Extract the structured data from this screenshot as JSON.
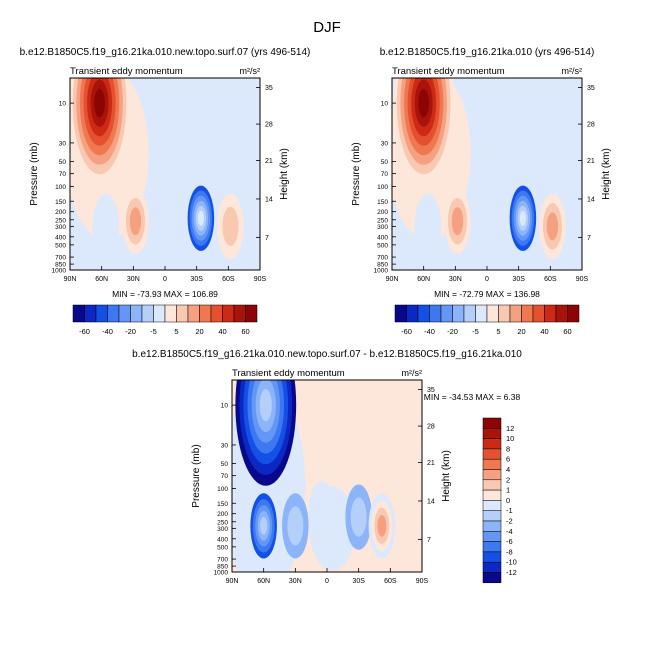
{
  "page_title": "DJF",
  "chart_data": [
    {
      "type": "heatmap",
      "title": "b.e12.B1850C5.f19_g16.21ka.010.new.topo.surf.07 (yrs 496-514)",
      "subtitle": "Transient eddy momentum",
      "units": "m²/s²",
      "ylabel": "Pressure (mb)",
      "ylabel_right": "Height (km)",
      "xticks": [
        "90N",
        "60N",
        "30N",
        "0",
        "30S",
        "60S",
        "90S"
      ],
      "yticks": [
        "10",
        "30",
        "50",
        "70",
        "100",
        "150",
        "200",
        "250",
        "300",
        "400",
        "500",
        "700",
        "850",
        "1000"
      ],
      "height_ticks": [
        "35",
        "28",
        "21",
        "14",
        "7"
      ],
      "stats": "MIN = -73.93   MAX = 106.89",
      "features": [
        {
          "lat": 62,
          "p": 10,
          "value": 95
        },
        {
          "lat": 28,
          "p": 260,
          "value": 28
        },
        {
          "lat": -34,
          "p": 240,
          "value": -55
        },
        {
          "lat": -62,
          "p": 300,
          "value": 18
        },
        {
          "lat": 56,
          "p": 300,
          "value": -8
        }
      ]
    },
    {
      "type": "heatmap",
      "title": "b.e12.B1850C5.f19_g16.21ka.010 (yrs 496-514)",
      "subtitle": "Transient eddy momentum",
      "units": "m²/s²",
      "ylabel": "Pressure (mb)",
      "ylabel_right": "Height (km)",
      "xticks": [
        "90N",
        "60N",
        "30N",
        "0",
        "30S",
        "60S",
        "90S"
      ],
      "yticks": [
        "10",
        "30",
        "50",
        "70",
        "100",
        "150",
        "200",
        "250",
        "300",
        "400",
        "500",
        "700",
        "850",
        "1000"
      ],
      "height_ticks": [
        "35",
        "28",
        "21",
        "14",
        "7"
      ],
      "stats": "MIN = -72.79   MAX = 136.98",
      "features": [
        {
          "lat": 60,
          "p": 10,
          "value": 110
        },
        {
          "lat": 28,
          "p": 260,
          "value": 28
        },
        {
          "lat": -34,
          "p": 240,
          "value": -55
        },
        {
          "lat": -62,
          "p": 300,
          "value": 20
        },
        {
          "lat": 56,
          "p": 300,
          "value": -8
        }
      ]
    },
    {
      "type": "heatmap",
      "title": "b.e12.B1850C5.f19_g16.21ka.010.new.topo.surf.07 - b.e12.B1850C5.f19_g16.21ka.010",
      "subtitle": "Transient eddy momentum",
      "units": "m²/s²",
      "ylabel": "Pressure (mb)",
      "ylabel_right": "Height (km)",
      "xticks": [
        "90N",
        "60N",
        "30N",
        "0",
        "30S",
        "60S",
        "90S"
      ],
      "yticks": [
        "10",
        "30",
        "50",
        "70",
        "100",
        "150",
        "200",
        "250",
        "300",
        "400",
        "500",
        "700",
        "850",
        "1000"
      ],
      "height_ticks": [
        "35",
        "28",
        "21",
        "14",
        "7"
      ],
      "stats": "MIN = -34.53   MAX =   6.38",
      "features": [
        {
          "lat": 58,
          "p": 10,
          "value": -30
        },
        {
          "lat": 60,
          "p": 280,
          "value": -9
        },
        {
          "lat": 30,
          "p": 280,
          "value": -3
        },
        {
          "lat": -30,
          "p": 220,
          "value": -3
        },
        {
          "lat": -52,
          "p": 280,
          "value": 6
        },
        {
          "lat": 5,
          "p": 200,
          "value": 1.5
        }
      ]
    }
  ],
  "colorbars": {
    "top": {
      "labels": [
        "-60",
        "-40",
        "-20",
        "-5",
        "5",
        "20",
        "40",
        "60"
      ],
      "levels": [
        -70,
        -60,
        -50,
        -40,
        -30,
        -20,
        -10,
        -5,
        0,
        5,
        10,
        20,
        30,
        40,
        50,
        60,
        70
      ]
    },
    "diff": {
      "labels": [
        "12",
        "10",
        "8",
        "6",
        "4",
        "2",
        "1",
        "0",
        "-1",
        "-2",
        "-4",
        "-6",
        "-8",
        "-10",
        "-12"
      ],
      "levels": [
        -12,
        -10,
        -8,
        -6,
        -4,
        -2,
        -1,
        0,
        1,
        2,
        4,
        6,
        8,
        10,
        12
      ]
    },
    "colors": [
      "#08088c",
      "#0c28c4",
      "#1450e6",
      "#3c78f0",
      "#6496f5",
      "#8cb4f8",
      "#b4cffa",
      "#dce9fc",
      "#fde6da",
      "#f9c8b0",
      "#f5a080",
      "#ef7850",
      "#e45030",
      "#cc2a14",
      "#a8140a",
      "#8c0404"
    ]
  }
}
